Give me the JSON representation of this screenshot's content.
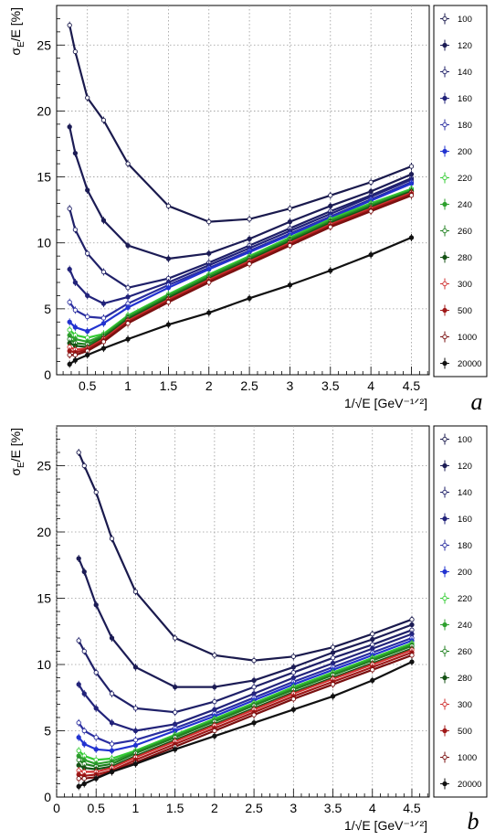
{
  "chart_data": [
    {
      "type": "line",
      "panel_label": "a",
      "ylabel_main": "σ",
      "ylabel_sub": "E",
      "ylabel_rest": "/E [%]",
      "xlabel": "1/√E [GeV⁻¹ᐟ²]",
      "xlim": [
        0.12,
        4.72
      ],
      "ylim": [
        0,
        28
      ],
      "xticks": [
        0.5,
        1,
        1.5,
        2,
        2.5,
        3,
        3.5,
        4,
        4.5
      ],
      "yticks": [
        0,
        5,
        10,
        15,
        20,
        25
      ],
      "grid": true,
      "legend_position": "right",
      "series": [
        {
          "name": "100",
          "color": "#1a1a4d",
          "x": [
            0.28,
            0.35,
            0.5,
            0.7,
            1.0,
            1.5,
            2.0,
            2.5,
            3.0,
            3.5,
            4.0,
            4.5
          ],
          "y": [
            26.5,
            24.5,
            21.0,
            19.3,
            16.0,
            12.8,
            11.6,
            11.8,
            12.6,
            13.6,
            14.6,
            15.8
          ]
        },
        {
          "name": "120",
          "color": "#1c1c55",
          "x": [
            0.28,
            0.35,
            0.5,
            0.7,
            1.0,
            1.5,
            2.0,
            2.5,
            3.0,
            3.5,
            4.0,
            4.5
          ],
          "y": [
            18.8,
            16.8,
            14.0,
            11.7,
            9.8,
            8.8,
            9.2,
            10.3,
            11.6,
            12.8,
            13.9,
            15.2
          ]
        },
        {
          "name": "140",
          "color": "#1f2068",
          "x": [
            0.28,
            0.35,
            0.5,
            0.7,
            1.0,
            1.5,
            2.0,
            2.5,
            3.0,
            3.5,
            4.0,
            4.5
          ],
          "y": [
            12.6,
            11.0,
            9.2,
            7.8,
            6.6,
            7.3,
            8.5,
            9.8,
            11.1,
            12.4,
            13.6,
            14.9
          ]
        },
        {
          "name": "160",
          "color": "#22237a",
          "x": [
            0.28,
            0.35,
            0.5,
            0.7,
            1.0,
            1.5,
            2.0,
            2.5,
            3.0,
            3.5,
            4.0,
            4.5
          ],
          "y": [
            8.0,
            7.0,
            6.0,
            5.4,
            5.9,
            7.0,
            8.3,
            9.6,
            10.9,
            12.2,
            13.5,
            14.8
          ]
        },
        {
          "name": "180",
          "color": "#2a2ea0",
          "x": [
            0.28,
            0.35,
            0.5,
            0.7,
            1.0,
            1.5,
            2.0,
            2.5,
            3.0,
            3.5,
            4.0,
            4.5
          ],
          "y": [
            5.5,
            4.9,
            4.4,
            4.3,
            5.4,
            6.8,
            8.1,
            9.4,
            10.7,
            12.0,
            13.3,
            14.6
          ]
        },
        {
          "name": "200",
          "color": "#2233d0",
          "x": [
            0.28,
            0.35,
            0.5,
            0.7,
            1.0,
            1.5,
            2.0,
            2.5,
            3.0,
            3.5,
            4.0,
            4.5
          ],
          "y": [
            4.0,
            3.6,
            3.3,
            3.9,
            5.1,
            6.6,
            8.0,
            9.3,
            10.6,
            11.9,
            13.2,
            14.5
          ]
        },
        {
          "name": "220",
          "color": "#33cc33",
          "x": [
            0.28,
            0.35,
            0.5,
            0.7,
            1.0,
            1.5,
            2.0,
            2.5,
            3.0,
            3.5,
            4.0,
            4.5
          ],
          "y": [
            3.4,
            3.0,
            2.8,
            3.1,
            4.5,
            6.1,
            7.6,
            9.0,
            10.4,
            11.8,
            13.0,
            14.1
          ]
        },
        {
          "name": "240",
          "color": "#2ea02e",
          "x": [
            0.28,
            0.35,
            0.5,
            0.7,
            1.0,
            1.5,
            2.0,
            2.5,
            3.0,
            3.5,
            4.0,
            4.5
          ],
          "y": [
            3.0,
            2.7,
            2.5,
            3.0,
            4.4,
            6.0,
            7.5,
            8.9,
            10.3,
            11.7,
            12.9,
            14.0
          ]
        },
        {
          "name": "260",
          "color": "#1f7f1f",
          "x": [
            0.28,
            0.35,
            0.5,
            0.7,
            1.0,
            1.5,
            2.0,
            2.5,
            3.0,
            3.5,
            4.0,
            4.5
          ],
          "y": [
            2.7,
            2.4,
            2.3,
            2.9,
            4.3,
            5.9,
            7.4,
            8.8,
            10.2,
            11.6,
            12.8,
            13.9
          ]
        },
        {
          "name": "280",
          "color": "#145214",
          "x": [
            0.28,
            0.35,
            0.5,
            0.7,
            1.0,
            1.5,
            2.0,
            2.5,
            3.0,
            3.5,
            4.0,
            4.5
          ],
          "y": [
            2.4,
            2.2,
            2.1,
            2.8,
            4.2,
            5.8,
            7.3,
            8.7,
            10.1,
            11.5,
            12.7,
            13.9
          ]
        },
        {
          "name": "300",
          "color": "#d03030",
          "x": [
            0.28,
            0.35,
            0.5,
            0.7,
            1.0,
            1.5,
            2.0,
            2.5,
            3.0,
            3.5,
            4.0,
            4.5
          ],
          "y": [
            2.1,
            1.9,
            2.0,
            2.7,
            4.1,
            5.7,
            7.2,
            8.6,
            10.0,
            11.4,
            12.6,
            13.8
          ]
        },
        {
          "name": "500",
          "color": "#a01818",
          "x": [
            0.28,
            0.35,
            0.5,
            0.7,
            1.0,
            1.5,
            2.0,
            2.5,
            3.0,
            3.5,
            4.0,
            4.5
          ],
          "y": [
            1.8,
            1.7,
            1.9,
            2.6,
            4.0,
            5.6,
            7.1,
            8.5,
            9.9,
            11.3,
            12.5,
            13.7
          ]
        },
        {
          "name": "1000",
          "color": "#7a1010",
          "x": [
            0.28,
            0.35,
            0.5,
            0.7,
            1.0,
            1.5,
            2.0,
            2.5,
            3.0,
            3.5,
            4.0,
            4.5
          ],
          "y": [
            1.5,
            1.5,
            1.8,
            2.5,
            3.9,
            5.5,
            7.0,
            8.4,
            9.8,
            11.2,
            12.4,
            13.6
          ]
        },
        {
          "name": "20000",
          "color": "#111111",
          "x": [
            0.28,
            0.35,
            0.5,
            0.7,
            1.0,
            1.5,
            2.0,
            2.5,
            3.0,
            3.5,
            4.0,
            4.5
          ],
          "y": [
            0.8,
            1.1,
            1.5,
            2.0,
            2.7,
            3.8,
            4.7,
            5.8,
            6.8,
            7.9,
            9.1,
            10.4
          ]
        }
      ]
    },
    {
      "type": "line",
      "panel_label": "b",
      "ylabel_main": "σ",
      "ylabel_sub": "E",
      "ylabel_rest": "/E [%]",
      "xlabel": "1/√E [GeV⁻¹ᐟ²]",
      "xlim": [
        0,
        4.72
      ],
      "ylim": [
        0,
        28
      ],
      "xticks": [
        0,
        0.5,
        1,
        1.5,
        2,
        2.5,
        3,
        3.5,
        4,
        4.5
      ],
      "yticks": [
        0,
        5,
        10,
        15,
        20,
        25
      ],
      "grid": true,
      "legend_position": "right",
      "series": [
        {
          "name": "100",
          "color": "#1a1a4d",
          "x": [
            0.28,
            0.35,
            0.5,
            0.7,
            1.0,
            1.5,
            2.0,
            2.5,
            3.0,
            3.5,
            4.0,
            4.5
          ],
          "y": [
            26.0,
            25.0,
            23.0,
            19.5,
            15.5,
            12.0,
            10.7,
            10.3,
            10.6,
            11.3,
            12.3,
            13.4
          ]
        },
        {
          "name": "120",
          "color": "#1c1c55",
          "x": [
            0.28,
            0.35,
            0.5,
            0.7,
            1.0,
            1.5,
            2.0,
            2.5,
            3.0,
            3.5,
            4.0,
            4.5
          ],
          "y": [
            18.0,
            17.0,
            14.5,
            12.0,
            9.8,
            8.3,
            8.3,
            8.8,
            9.8,
            10.9,
            11.9,
            13.0
          ]
        },
        {
          "name": "140",
          "color": "#1f2068",
          "x": [
            0.28,
            0.35,
            0.5,
            0.7,
            1.0,
            1.5,
            2.0,
            2.5,
            3.0,
            3.5,
            4.0,
            4.5
          ],
          "y": [
            11.8,
            11.0,
            9.4,
            7.8,
            6.7,
            6.4,
            7.2,
            8.3,
            9.4,
            10.5,
            11.5,
            12.6
          ]
        },
        {
          "name": "160",
          "color": "#22237a",
          "x": [
            0.28,
            0.35,
            0.5,
            0.7,
            1.0,
            1.5,
            2.0,
            2.5,
            3.0,
            3.5,
            4.0,
            4.5
          ],
          "y": [
            8.5,
            7.8,
            6.7,
            5.6,
            5.0,
            5.5,
            6.6,
            7.8,
            9.0,
            10.1,
            11.2,
            12.3
          ]
        },
        {
          "name": "180",
          "color": "#2a2ea0",
          "x": [
            0.28,
            0.35,
            0.5,
            0.7,
            1.0,
            1.5,
            2.0,
            2.5,
            3.0,
            3.5,
            4.0,
            4.5
          ],
          "y": [
            5.6,
            5.0,
            4.5,
            4.0,
            4.3,
            5.2,
            6.3,
            7.5,
            8.7,
            9.8,
            10.9,
            12.0
          ]
        },
        {
          "name": "200",
          "color": "#2233d0",
          "x": [
            0.28,
            0.35,
            0.5,
            0.7,
            1.0,
            1.5,
            2.0,
            2.5,
            3.0,
            3.5,
            4.0,
            4.5
          ],
          "y": [
            4.5,
            4.0,
            3.6,
            3.5,
            3.9,
            5.0,
            6.1,
            7.3,
            8.5,
            9.6,
            10.7,
            11.8
          ]
        },
        {
          "name": "220",
          "color": "#33cc33",
          "x": [
            0.28,
            0.35,
            0.5,
            0.7,
            1.0,
            1.5,
            2.0,
            2.5,
            3.0,
            3.5,
            4.0,
            4.5
          ],
          "y": [
            3.5,
            3.1,
            2.8,
            2.9,
            3.5,
            4.7,
            5.9,
            7.1,
            8.3,
            9.4,
            10.5,
            11.6
          ]
        },
        {
          "name": "240",
          "color": "#2ea02e",
          "x": [
            0.28,
            0.35,
            0.5,
            0.7,
            1.0,
            1.5,
            2.0,
            2.5,
            3.0,
            3.5,
            4.0,
            4.5
          ],
          "y": [
            3.1,
            2.8,
            2.5,
            2.7,
            3.4,
            4.6,
            5.8,
            7.0,
            8.2,
            9.3,
            10.4,
            11.5
          ]
        },
        {
          "name": "260",
          "color": "#1f7f1f",
          "x": [
            0.28,
            0.35,
            0.5,
            0.7,
            1.0,
            1.5,
            2.0,
            2.5,
            3.0,
            3.5,
            4.0,
            4.5
          ],
          "y": [
            2.8,
            2.5,
            2.3,
            2.5,
            3.3,
            4.5,
            5.7,
            6.9,
            8.1,
            9.2,
            10.3,
            11.4
          ]
        },
        {
          "name": "280",
          "color": "#145214",
          "x": [
            0.28,
            0.35,
            0.5,
            0.7,
            1.0,
            1.5,
            2.0,
            2.5,
            3.0,
            3.5,
            4.0,
            4.5
          ],
          "y": [
            2.4,
            2.2,
            2.1,
            2.3,
            3.1,
            4.3,
            5.5,
            6.7,
            7.9,
            9.0,
            10.1,
            11.2
          ]
        },
        {
          "name": "300",
          "color": "#d03030",
          "x": [
            0.28,
            0.35,
            0.5,
            0.7,
            1.0,
            1.5,
            2.0,
            2.5,
            3.0,
            3.5,
            4.0,
            4.5
          ],
          "y": [
            2.0,
            1.9,
            1.9,
            2.2,
            3.0,
            4.2,
            5.4,
            6.6,
            7.8,
            8.9,
            10.0,
            11.1
          ]
        },
        {
          "name": "500",
          "color": "#a01818",
          "x": [
            0.28,
            0.35,
            0.5,
            0.7,
            1.0,
            1.5,
            2.0,
            2.5,
            3.0,
            3.5,
            4.0,
            4.5
          ],
          "y": [
            1.7,
            1.6,
            1.7,
            2.0,
            2.8,
            4.0,
            5.2,
            6.4,
            7.6,
            8.7,
            9.8,
            10.9
          ]
        },
        {
          "name": "1000",
          "color": "#7a1010",
          "x": [
            0.28,
            0.35,
            0.5,
            0.7,
            1.0,
            1.5,
            2.0,
            2.5,
            3.0,
            3.5,
            4.0,
            4.5
          ],
          "y": [
            1.4,
            1.4,
            1.5,
            1.9,
            2.6,
            3.8,
            5.0,
            6.2,
            7.4,
            8.5,
            9.6,
            10.7
          ]
        },
        {
          "name": "20000",
          "color": "#111111",
          "x": [
            0.28,
            0.35,
            0.5,
            0.7,
            1.0,
            1.5,
            2.0,
            2.5,
            3.0,
            3.5,
            4.0,
            4.5
          ],
          "y": [
            0.8,
            1.0,
            1.4,
            1.9,
            2.5,
            3.6,
            4.6,
            5.6,
            6.6,
            7.6,
            8.8,
            10.2
          ]
        }
      ]
    }
  ]
}
